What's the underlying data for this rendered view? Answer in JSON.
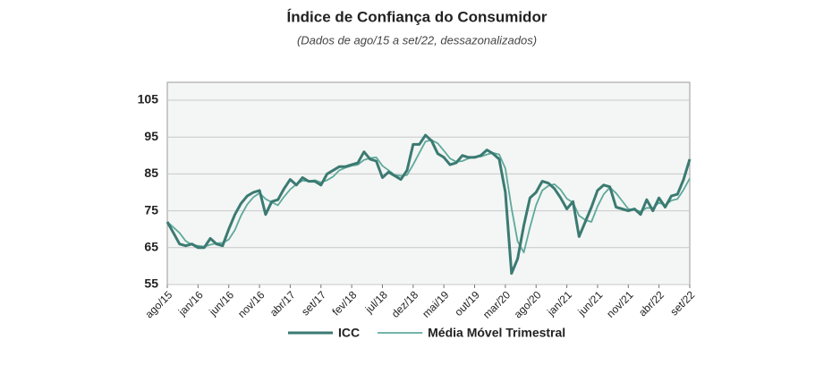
{
  "chart_data": {
    "type": "line",
    "title": "Índice de Confiança do Consumidor",
    "subtitle": "(Dados de ago/15 a set/22, dessazonalizados)",
    "categories": [
      "ago/15",
      null,
      null,
      null,
      null,
      "jan/16",
      null,
      null,
      null,
      null,
      "jun/16",
      null,
      null,
      null,
      null,
      "nov/16",
      null,
      null,
      null,
      null,
      "abr/17",
      null,
      null,
      null,
      null,
      "set/17",
      null,
      null,
      null,
      null,
      "fev/18",
      null,
      null,
      null,
      null,
      "jul/18",
      null,
      null,
      null,
      null,
      "dez/18",
      null,
      null,
      null,
      null,
      "mai/19",
      null,
      null,
      null,
      null,
      "out/19",
      null,
      null,
      null,
      null,
      "mar/20",
      null,
      null,
      null,
      null,
      "ago/20",
      null,
      null,
      null,
      null,
      "jan/21",
      null,
      null,
      null,
      null,
      "jun/21",
      null,
      null,
      null,
      null,
      "nov/21",
      null,
      null,
      null,
      null,
      "abr/22",
      null,
      null,
      null,
      null,
      "set/22"
    ],
    "series": [
      {
        "name": "ICC",
        "color": "#3b7a72",
        "values": [
          72,
          69,
          66,
          65.5,
          66,
          65,
          65,
          67.5,
          66,
          65.5,
          70,
          74,
          77,
          79,
          80,
          80.5,
          74,
          77.5,
          78,
          81,
          83.5,
          82,
          84,
          83,
          83,
          82,
          85,
          86,
          87,
          87,
          87.5,
          88,
          91,
          89,
          88.5,
          84,
          85.5,
          84.5,
          83.5,
          86,
          93,
          93,
          95.5,
          94,
          90.5,
          89.5,
          87.5,
          88,
          90,
          89.5,
          89.5,
          90,
          91.5,
          90.5,
          89,
          80,
          58,
          62,
          71,
          78.5,
          80,
          83,
          82.5,
          81,
          78.5,
          75.5,
          77.5,
          68,
          72,
          76,
          80.5,
          82,
          81.5,
          76,
          75.5,
          75,
          75.5,
          74,
          78,
          75,
          78.5,
          76,
          79,
          79.5,
          83.5,
          89
        ]
      },
      {
        "name": "Média Móvel Trimestral",
        "color": "#5fa99b",
        "values": [
          72,
          70.5,
          69,
          66.8,
          65.8,
          65.5,
          65.3,
          65.8,
          66.2,
          66.3,
          67.2,
          69.8,
          73.7,
          76.7,
          78.7,
          79.8,
          78.2,
          77.3,
          76.5,
          78.8,
          80.8,
          82.2,
          83.2,
          83,
          83.3,
          82.7,
          83.3,
          84.3,
          86,
          86.7,
          87.2,
          87.5,
          88.8,
          89.3,
          89.5,
          87.2,
          86,
          84.7,
          84.5,
          84.7,
          87.5,
          90.7,
          93.8,
          94.2,
          93.3,
          91.3,
          89.2,
          88.3,
          88.5,
          89.2,
          89.7,
          89.7,
          90.3,
          90.7,
          90.3,
          86.5,
          75.7,
          66.7,
          63.7,
          70.5,
          76.5,
          80.5,
          81.8,
          82.2,
          80.7,
          78.3,
          77.2,
          73.7,
          72.5,
          72,
          76.2,
          79.5,
          81.3,
          79.8,
          77.7,
          75.5,
          75.3,
          74.8,
          75.8,
          75.7,
          77.2,
          76.5,
          77.8,
          78.2,
          80.7,
          83.8
        ]
      }
    ],
    "ylim": [
      55,
      105
    ],
    "yticks": [
      55,
      65,
      75,
      85,
      95,
      105
    ],
    "grid": true
  }
}
